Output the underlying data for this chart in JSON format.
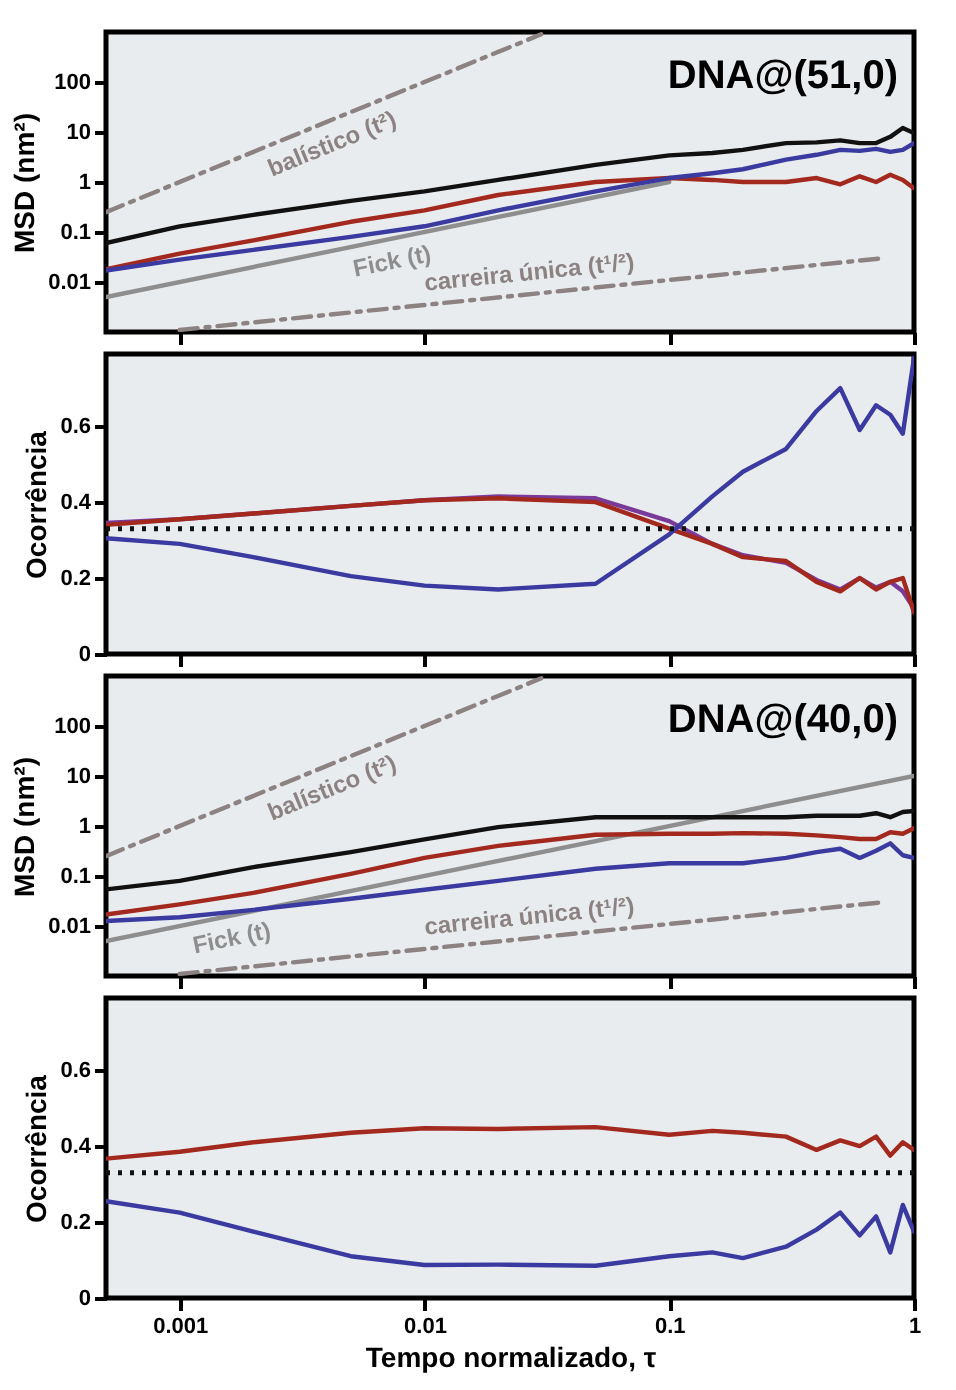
{
  "chart_data": [
    {
      "type": "line",
      "log": "xy",
      "ylabel": "MSD (nm²)",
      "tick_labels": "y",
      "annotations": [
        "DNA@(51,0)"
      ],
      "xlim": [
        0.0005,
        1
      ],
      "ylim": [
        0.001,
        1000
      ],
      "xticks": [
        0.001,
        0.01,
        0.1,
        1
      ],
      "yticks": [
        0.01,
        0.1,
        1,
        10,
        100
      ],
      "x": [
        0.0005,
        0.001,
        0.002,
        0.005,
        0.01,
        0.02,
        0.05,
        0.1,
        0.15,
        0.2,
        0.3,
        0.4,
        0.5,
        0.6,
        0.7,
        0.8,
        0.9,
        1
      ],
      "series": [
        {
          "name": "balístico (t²)",
          "color": "#8c8282",
          "line_style": "dashed",
          "x": [
            0.0005,
            0.03
          ],
          "values": [
            0.25,
            900
          ]
        },
        {
          "name": "carreira única (t¹/²)",
          "color": "#8c8282",
          "line_style": "dashed",
          "x": [
            0.001,
            0.75
          ],
          "values": [
            0.0011,
            0.03
          ]
        },
        {
          "name": "Fick (t)",
          "color": "#8e8e8e",
          "x": [
            0.0005,
            0.1
          ],
          "values": [
            0.005,
            1
          ]
        },
        {
          "color": "#111111",
          "values": [
            0.06,
            0.13,
            0.22,
            0.42,
            0.65,
            1.1,
            2.2,
            3.4,
            3.8,
            4.4,
            6,
            6.2,
            6.8,
            6,
            6,
            8,
            12,
            9.5
          ]
        },
        {
          "color": "#a3281e",
          "values": [
            0.018,
            0.037,
            0.068,
            0.16,
            0.27,
            0.55,
            1.0,
            1.2,
            1.1,
            1.0,
            1.0,
            1.2,
            0.9,
            1.3,
            1.0,
            1.4,
            1.1,
            0.75
          ]
        },
        {
          "color": "#3a3aa0",
          "values": [
            0.017,
            0.028,
            0.044,
            0.08,
            0.13,
            0.27,
            0.65,
            1.2,
            1.5,
            1.8,
            2.8,
            3.5,
            4.4,
            4.2,
            4.6,
            4.0,
            4.4,
            6
          ]
        }
      ]
    },
    {
      "type": "line",
      "log": "x",
      "ylabel": "Ocorrência",
      "tick_labels": "y",
      "xlim": [
        0.0005,
        1
      ],
      "ylim": [
        0,
        0.79
      ],
      "xticks": [
        0.001,
        0.01,
        0.1,
        1
      ],
      "yticks": [
        0,
        0.2,
        0.4,
        0.6
      ],
      "ref_lines": [
        {
          "axis": "y",
          "value": 0.33,
          "color": "#111111",
          "line_style": "dotted"
        }
      ],
      "x": [
        0.0005,
        0.001,
        0.002,
        0.005,
        0.01,
        0.02,
        0.05,
        0.1,
        0.15,
        0.2,
        0.3,
        0.4,
        0.5,
        0.6,
        0.7,
        0.8,
        0.9,
        1
      ],
      "series": [
        {
          "color": "#7a3a9a",
          "values": [
            0.345,
            0.355,
            0.37,
            0.39,
            0.405,
            0.415,
            0.41,
            0.35,
            0.29,
            0.26,
            0.24,
            0.195,
            0.17,
            0.2,
            0.175,
            0.19,
            0.165,
            0.12
          ]
        },
        {
          "color": "#a3281e",
          "values": [
            0.34,
            0.355,
            0.37,
            0.39,
            0.405,
            0.41,
            0.4,
            0.33,
            0.29,
            0.255,
            0.245,
            0.19,
            0.165,
            0.2,
            0.17,
            0.19,
            0.2,
            0.11
          ]
        },
        {
          "color": "#3a3aa0",
          "values": [
            0.305,
            0.29,
            0.255,
            0.205,
            0.18,
            0.17,
            0.185,
            0.315,
            0.415,
            0.48,
            0.54,
            0.64,
            0.7,
            0.59,
            0.655,
            0.63,
            0.58,
            0.78
          ]
        }
      ]
    },
    {
      "type": "line",
      "log": "xy",
      "ylabel": "MSD (nm²)",
      "tick_labels": "y",
      "annotations": [
        "DNA@(40,0)"
      ],
      "xlim": [
        0.0005,
        1
      ],
      "ylim": [
        0.001,
        1000
      ],
      "xticks": [
        0.001,
        0.01,
        0.1,
        1
      ],
      "yticks": [
        0.01,
        0.1,
        1,
        10,
        100
      ],
      "x": [
        0.0005,
        0.001,
        0.002,
        0.005,
        0.01,
        0.02,
        0.05,
        0.1,
        0.15,
        0.2,
        0.3,
        0.4,
        0.5,
        0.6,
        0.7,
        0.8,
        0.9,
        1
      ],
      "series": [
        {
          "name": "balístico (t²)",
          "color": "#8c8282",
          "line_style": "dashed",
          "x": [
            0.0005,
            0.03
          ],
          "values": [
            0.25,
            900
          ]
        },
        {
          "name": "carreira única (t¹/²)",
          "color": "#8c8282",
          "line_style": "dashed",
          "x": [
            0.001,
            0.75
          ],
          "values": [
            0.0011,
            0.03
          ]
        },
        {
          "name": "Fick (t)",
          "color": "#8e8e8e",
          "x": [
            0.0005,
            1
          ],
          "values": [
            0.005,
            10
          ]
        },
        {
          "color": "#111111",
          "values": [
            0.054,
            0.08,
            0.15,
            0.3,
            0.54,
            0.95,
            1.5,
            1.5,
            1.5,
            1.5,
            1.5,
            1.6,
            1.6,
            1.6,
            1.8,
            1.5,
            1.9,
            2
          ]
        },
        {
          "color": "#a3281e",
          "values": [
            0.017,
            0.027,
            0.046,
            0.11,
            0.23,
            0.4,
            0.67,
            0.7,
            0.7,
            0.72,
            0.7,
            0.65,
            0.6,
            0.55,
            0.55,
            0.75,
            0.7,
            0.9
          ]
        },
        {
          "color": "#3a3aa0",
          "values": [
            0.0126,
            0.015,
            0.021,
            0.035,
            0.053,
            0.08,
            0.14,
            0.18,
            0.18,
            0.18,
            0.23,
            0.3,
            0.35,
            0.23,
            0.32,
            0.45,
            0.26,
            0.23
          ]
        }
      ]
    },
    {
      "type": "line",
      "log": "x",
      "ylabel": "Ocorrência",
      "xlabel": "Tempo normalizado, τ",
      "xlim": [
        0.0005,
        1
      ],
      "ylim": [
        0,
        0.79
      ],
      "xticks": [
        0.001,
        0.01,
        0.1,
        1
      ],
      "yticks": [
        0,
        0.2,
        0.4,
        0.6
      ],
      "ref_lines": [
        {
          "axis": "y",
          "value": 0.33,
          "color": "#111111",
          "line_style": "dotted"
        }
      ],
      "x": [
        0.0005,
        0.001,
        0.002,
        0.005,
        0.01,
        0.02,
        0.05,
        0.1,
        0.15,
        0.2,
        0.3,
        0.4,
        0.5,
        0.6,
        0.7,
        0.8,
        0.9,
        1
      ],
      "series": [
        {
          "color": "#a3281e",
          "values": [
            0.367,
            0.385,
            0.41,
            0.435,
            0.447,
            0.445,
            0.45,
            0.43,
            0.44,
            0.435,
            0.425,
            0.39,
            0.415,
            0.4,
            0.425,
            0.375,
            0.41,
            0.39
          ]
        },
        {
          "color": "#3a3aa0",
          "values": [
            0.255,
            0.225,
            0.175,
            0.11,
            0.087,
            0.088,
            0.085,
            0.11,
            0.12,
            0.105,
            0.135,
            0.18,
            0.225,
            0.165,
            0.215,
            0.12,
            0.245,
            0.175
          ]
        }
      ]
    }
  ]
}
